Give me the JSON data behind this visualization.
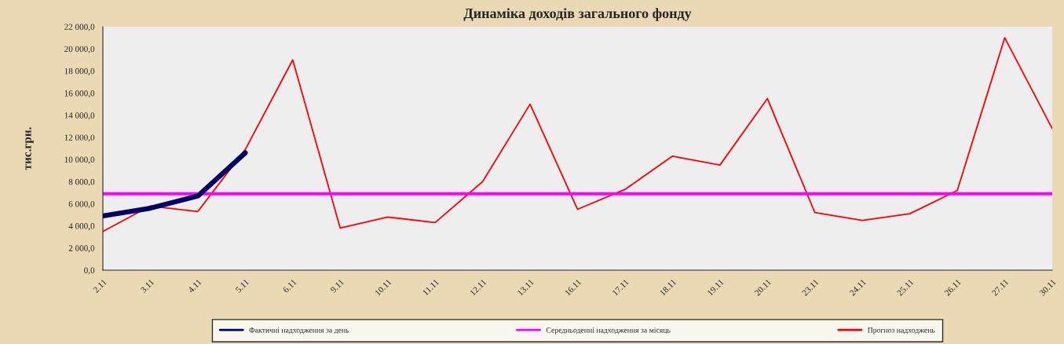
{
  "chart_data": {
    "type": "line",
    "title": "Динаміка доходів загального фонду",
    "ylabel": "тис.грн.",
    "categories": [
      "2.11",
      "3.11",
      "4.11",
      "5.11",
      "6.11",
      "9.11",
      "10.11",
      "11.11",
      "12.11",
      "13.11",
      "16.11",
      "17.11",
      "18.11",
      "19.11",
      "20.11",
      "23.11",
      "24.11",
      "25.11",
      "26.11",
      "27.11",
      "30.11"
    ],
    "series": [
      {
        "name": "Фактичні надходження за день",
        "color": "#000066",
        "values": [
          4900,
          5600,
          6700,
          10600,
          null,
          null,
          null,
          null,
          null,
          null,
          null,
          null,
          null,
          null,
          null,
          null,
          null,
          null,
          null,
          null,
          null
        ]
      },
      {
        "name": "Середньоденні надходження за місяць",
        "color": "#ff00ff",
        "values": [
          6900,
          6900,
          6900,
          6900,
          6900,
          6900,
          6900,
          6900,
          6900,
          6900,
          6900,
          6900,
          6900,
          6900,
          6900,
          6900,
          6900,
          6900,
          6900,
          6900,
          6900
        ]
      },
      {
        "name": "Прогноз надходжень",
        "color": "#ff0000",
        "values": [
          3500,
          5800,
          5300,
          10900,
          19000,
          3800,
          4800,
          4300,
          8000,
          15000,
          5500,
          7300,
          10300,
          9500,
          15500,
          5200,
          4500,
          5100,
          7200,
          21000,
          12800
        ]
      }
    ],
    "ylim": [
      0,
      22000
    ],
    "yticks": [
      {
        "value": 0,
        "label": "0,0"
      },
      {
        "value": 2000,
        "label": "2 000,0"
      },
      {
        "value": 4000,
        "label": "4 000,0"
      },
      {
        "value": 6000,
        "label": "6 000,0"
      },
      {
        "value": 8000,
        "label": "8 000,0"
      },
      {
        "value": 10000,
        "label": "10 000,0"
      },
      {
        "value": 12000,
        "label": "12 000,0"
      },
      {
        "value": 14000,
        "label": "14 000,0"
      },
      {
        "value": 16000,
        "label": "16 000,0"
      },
      {
        "value": 18000,
        "label": "18 000,0"
      },
      {
        "value": 20000,
        "label": "20 000,0"
      },
      {
        "value": 22000,
        "label": "22 000,0"
      }
    ],
    "grid": false,
    "legend": "bottom",
    "marker": "none",
    "line_style": "solid"
  }
}
